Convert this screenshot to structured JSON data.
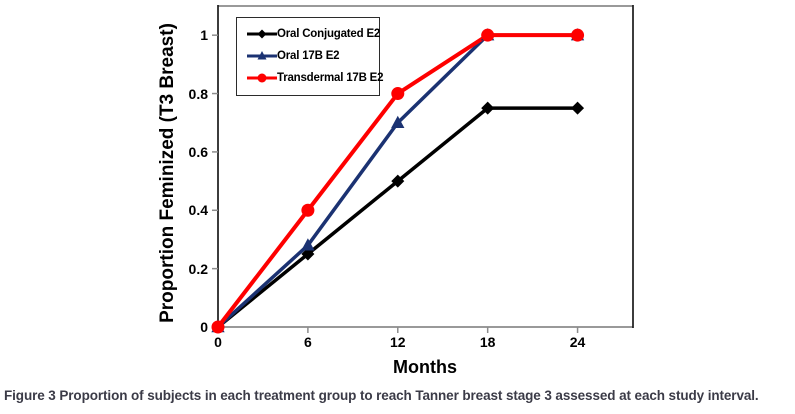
{
  "chart_data": {
    "type": "line",
    "title": "",
    "xlabel": "Months",
    "ylabel": "Proportion Feminized (T3 Breast)",
    "x": [
      0,
      6,
      12,
      18,
      24
    ],
    "x_ticks": [
      0,
      6,
      12,
      18,
      24
    ],
    "y_ticks": [
      0,
      0.2,
      0.4,
      0.6,
      0.8,
      1
    ],
    "xlim": [
      0,
      27.7
    ],
    "ylim": [
      0,
      1.1
    ],
    "grid": false,
    "legend_position": "top-left-inside",
    "series": [
      {
        "name": "Oral Conjugated E2",
        "color": "#000000",
        "marker": "diamond",
        "line_width": 3.5,
        "values": [
          0,
          0.25,
          0.5,
          0.75,
          0.75
        ]
      },
      {
        "name": "Oral 17B E2",
        "color": "#1b3272",
        "marker": "triangle",
        "line_width": 3.5,
        "values": [
          0,
          0.28,
          0.7,
          1.0,
          1.0
        ]
      },
      {
        "name": "Transdermal 17B E2",
        "color": "#fe0000",
        "marker": "circle",
        "line_width": 4,
        "values": [
          0,
          0.4,
          0.8,
          1.0,
          1.0
        ]
      }
    ],
    "axis_colors": {
      "side_border": "#1a1a1a",
      "top_bottom_border": "#999999",
      "tick": "#8c8c8c"
    }
  },
  "caption": {
    "label": "Figure 3",
    "text": "Proportion of subjects in each treatment group to reach Tanner breast stage 3 assessed at each study interval."
  }
}
